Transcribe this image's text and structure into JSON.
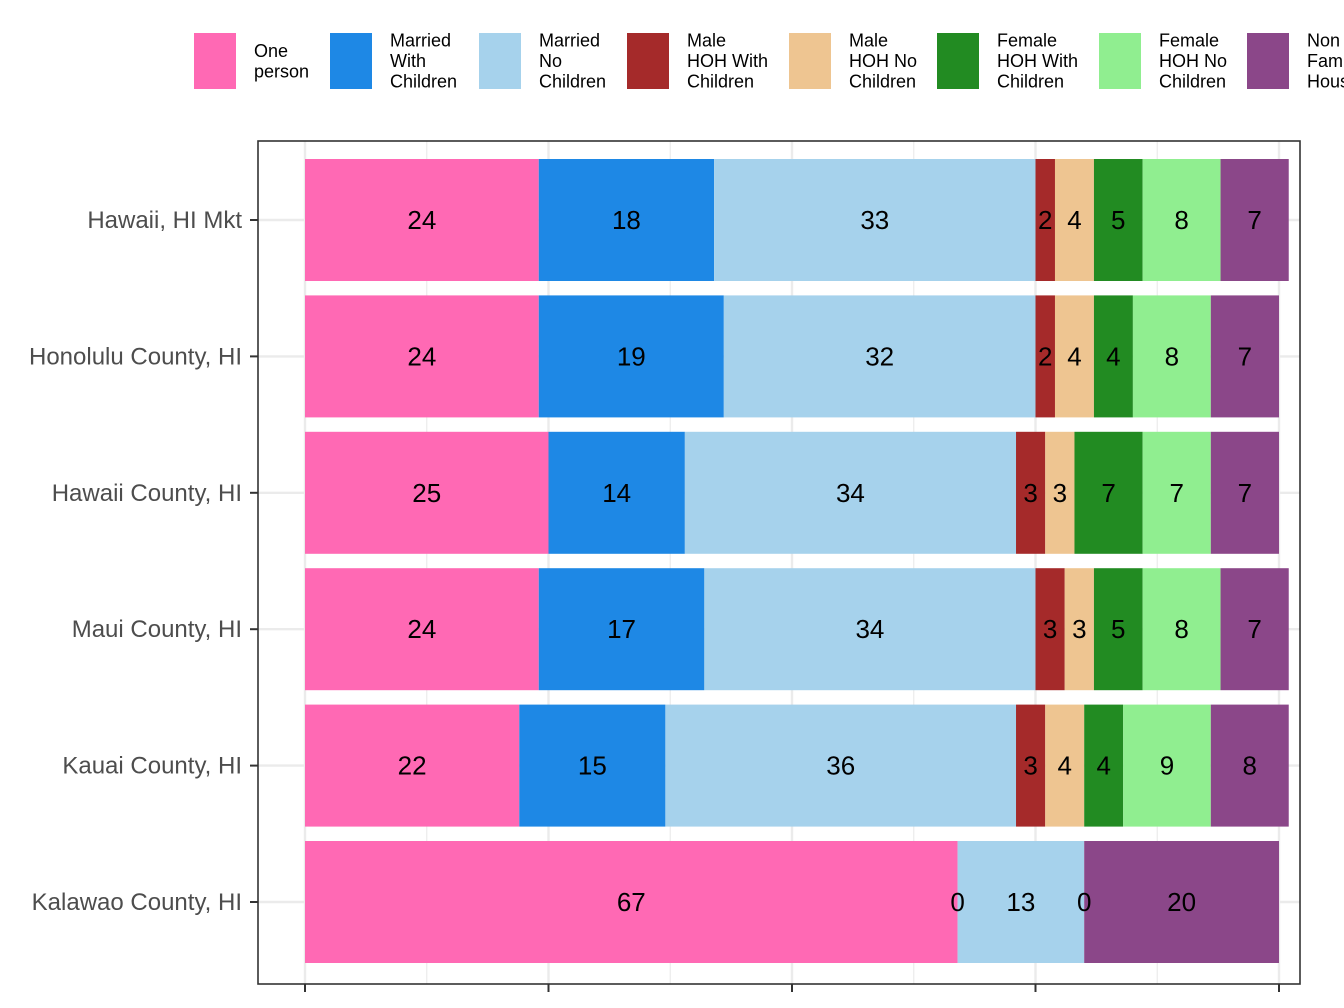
{
  "chart_data": {
    "type": "bar",
    "orientation": "horizontal",
    "stacked": true,
    "categories": [
      "Hawaii, HI Mkt",
      "Honolulu County, HI",
      "Hawaii County, HI",
      "Maui County, HI",
      "Kauai County, HI",
      "Kalawao County, HI"
    ],
    "series": [
      {
        "name": "One person",
        "legend_lines": [
          "One",
          "person"
        ],
        "color": "#FF69B4",
        "values": [
          24,
          24,
          25,
          24,
          22,
          67
        ],
        "labels": [
          "24",
          "24",
          "25",
          "24",
          "22",
          "67"
        ]
      },
      {
        "name": "Married With Children",
        "legend_lines": [
          "Married",
          "With",
          "Children"
        ],
        "color": "#1E88E5",
        "values": [
          18,
          19,
          14,
          17,
          15,
          0
        ],
        "labels": [
          "18",
          "19",
          "14",
          "17",
          "15",
          "0"
        ]
      },
      {
        "name": "Married No Children",
        "legend_lines": [
          "Married",
          "No",
          "Children"
        ],
        "color": "#A6D2EC",
        "values": [
          33,
          32,
          34,
          34,
          36,
          13
        ],
        "labels": [
          "33",
          "32",
          "34",
          "34",
          "36",
          "13"
        ]
      },
      {
        "name": "Male HOH With Children",
        "legend_lines": [
          "Male",
          "HOH With",
          "Children"
        ],
        "color": "#A52A2A",
        "values": [
          2,
          2,
          3,
          3,
          3,
          0
        ],
        "labels": [
          "2",
          "2",
          "3",
          "3",
          "3",
          "0"
        ]
      },
      {
        "name": "Male HOH No Children",
        "legend_lines": [
          "Male",
          "HOH No",
          "Children"
        ],
        "color": "#EEC591",
        "values": [
          4,
          4,
          3,
          3,
          4,
          0
        ],
        "labels": [
          "4",
          "4",
          "3",
          "3",
          "4",
          ""
        ]
      },
      {
        "name": "Female HOH With Children",
        "legend_lines": [
          "Female",
          "HOH With",
          "Children"
        ],
        "color": "#228B22",
        "values": [
          5,
          4,
          7,
          5,
          4,
          0
        ],
        "labels": [
          "5",
          "4",
          "7",
          "5",
          "4",
          ""
        ]
      },
      {
        "name": "Female HOH No Children",
        "legend_lines": [
          "Female",
          "HOH No",
          "Children"
        ],
        "color": "#90EE90",
        "values": [
          8,
          8,
          7,
          8,
          9,
          0
        ],
        "labels": [
          "8",
          "8",
          "7",
          "8",
          "9",
          ""
        ]
      },
      {
        "name": "Non Family Households",
        "legend_lines": [
          "Non",
          "Fam",
          "Hous"
        ],
        "color": "#8B4789",
        "values": [
          7,
          7,
          7,
          7,
          8,
          20
        ],
        "labels": [
          "7",
          "7",
          "7",
          "7",
          "8",
          "20"
        ]
      }
    ],
    "xlim": [
      0,
      100
    ],
    "xlabel": "",
    "ylabel": "",
    "title": "",
    "grid": true,
    "legend_position": "top"
  }
}
